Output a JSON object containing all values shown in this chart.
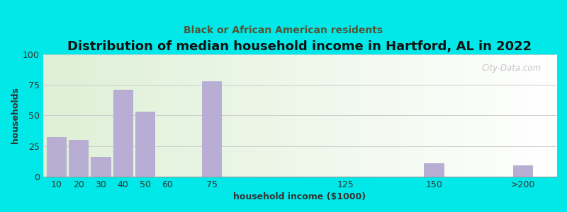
{
  "title": "Distribution of median household income in Hartford, AL in 2022",
  "subtitle": "Black or African American residents",
  "xlabel": "household income ($1000)",
  "ylabel": "households",
  "bar_labels": [
    "10",
    "20",
    "30",
    "40",
    "50",
    "60",
    "75",
    "125",
    "150",
    ">200"
  ],
  "bar_values": [
    32,
    30,
    16,
    71,
    53,
    0,
    78,
    0,
    11,
    9
  ],
  "bar_positions": [
    0,
    1,
    2,
    3,
    4,
    5,
    7,
    13,
    17,
    21
  ],
  "bar_color": "#b8aed4",
  "ylim": [
    0,
    100
  ],
  "yticks": [
    0,
    25,
    50,
    75,
    100
  ],
  "background_outer": "#00e8e8",
  "grid_color": "#cccccc",
  "title_fontsize": 13,
  "subtitle_fontsize": 10,
  "axis_label_fontsize": 9,
  "tick_fontsize": 9,
  "watermark_text": "City-Data.com",
  "subtitle_color": "#555533",
  "title_color": "#111111"
}
